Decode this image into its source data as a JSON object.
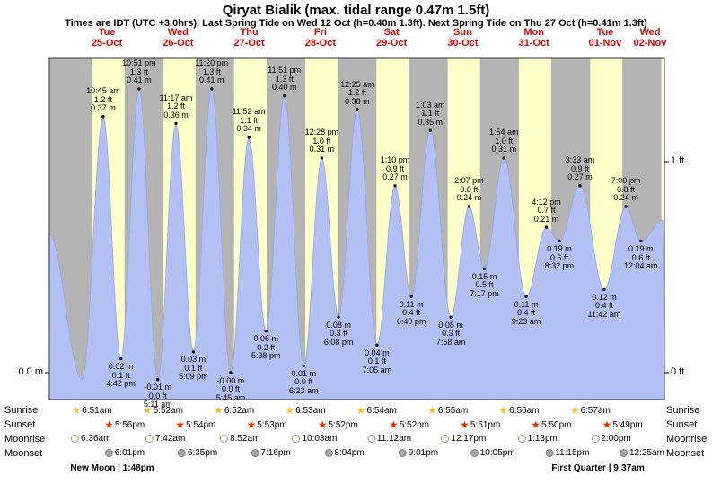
{
  "header": {
    "title": "Qiryat Bialik (max. tidal range 0.47m 1.5ft)",
    "subtitle": "Times are IDT (UTC +3.0hrs). Last Spring Tide on Wed 12 Oct (h=0.40m 1.3ft). Next Spring Tide on Thu 27 Oct (h=0.41m 1.3ft)"
  },
  "colors": {
    "band_day": "#ffffc9",
    "band_night": "#b4b4b4",
    "tide_fill": "#b2c0f4",
    "tide_stroke": "#93a7e8",
    "accent_red": "#e00000",
    "sunrise_star": "#f1c232",
    "sunset_star": "#e03300",
    "moonrise_fill": "#fffef0",
    "moonrise_border": "#999999",
    "moonset_fill": "#a6a6a6",
    "moonset_border": "#808080",
    "dot": "#111111",
    "border": "#333333"
  },
  "chart_data": {
    "type": "area",
    "title": "Qiryat Bialik (max. tidal range 0.47m 1.5ft)",
    "xlabel": "",
    "ylabel": "tide height",
    "ylim_ft": [
      -0.13,
      1.49
    ],
    "days": [
      {
        "dow": "Tue",
        "date": "25-Oct"
      },
      {
        "dow": "Wed",
        "date": "26-Oct"
      },
      {
        "dow": "Thu",
        "date": "27-Oct"
      },
      {
        "dow": "Fri",
        "date": "28-Oct"
      },
      {
        "dow": "Sat",
        "date": "29-Oct"
      },
      {
        "dow": "Sun",
        "date": "30-Oct"
      },
      {
        "dow": "Mon",
        "date": "31-Oct"
      },
      {
        "dow": "Tue",
        "date": "01-Nov"
      },
      {
        "dow": "Wed",
        "date": "02-Nov"
      }
    ],
    "y_axis": {
      "left_label": "0.0 m",
      "right_top_label": "1 ft",
      "right_bottom_label": "0 ft",
      "right_ticks_ft": [
        1,
        0
      ],
      "left_tick_m": 0.0
    },
    "extremes": [
      {
        "kind": "high",
        "day": 0,
        "time": "10:45 am",
        "ft": "1.2 ft",
        "m": "0.37 m",
        "h_m": 0.37
      },
      {
        "kind": "low",
        "day": 0,
        "time": "4:42 pm",
        "ft": "0.1 ft",
        "m": "0.02 m",
        "h_m": 0.02
      },
      {
        "kind": "high",
        "day": 0,
        "time": "10:51 pm",
        "ft": "1.3 ft",
        "m": "0.41 m",
        "h_m": 0.41
      },
      {
        "kind": "low",
        "day": 1,
        "time": "5:11 am",
        "ft": "0.0 ft",
        "m": "-0.01 m",
        "h_m": -0.01
      },
      {
        "kind": "high",
        "day": 1,
        "time": "11:17 am",
        "ft": "1.2 ft",
        "m": "0.36 m",
        "h_m": 0.36
      },
      {
        "kind": "low",
        "day": 1,
        "time": "5:09 pm",
        "ft": "0.1 ft",
        "m": "0.03 m",
        "h_m": 0.03
      },
      {
        "kind": "high",
        "day": 1,
        "time": "11:20 pm",
        "ft": "1.3 ft",
        "m": "0.41 m",
        "h_m": 0.41
      },
      {
        "kind": "low",
        "day": 2,
        "time": "5:45 am",
        "ft": "0.0 ft",
        "m": "-0.00 m",
        "h_m": 0.0
      },
      {
        "kind": "high",
        "day": 2,
        "time": "11:52 am",
        "ft": "1.1 ft",
        "m": "0.34 m",
        "h_m": 0.34
      },
      {
        "kind": "low",
        "day": 2,
        "time": "5:38 pm",
        "ft": "0.2 ft",
        "m": "0.06 m",
        "h_m": 0.06
      },
      {
        "kind": "high",
        "day": 2,
        "time": "11:51 pm",
        "ft": "1.3 ft",
        "m": "0.40 m",
        "h_m": 0.4
      },
      {
        "kind": "low",
        "day": 3,
        "time": "6:23 am",
        "ft": "0.0 ft",
        "m": "0.01 m",
        "h_m": 0.01
      },
      {
        "kind": "high",
        "day": 3,
        "time": "12:28 pm",
        "ft": "1.0 ft",
        "m": "0.31 m",
        "h_m": 0.31
      },
      {
        "kind": "low",
        "day": 3,
        "time": "6:08 pm",
        "ft": "0.3 ft",
        "m": "0.08 m",
        "h_m": 0.08
      },
      {
        "kind": "high",
        "day": 4,
        "time": "12:25 am",
        "ft": "1.2 ft",
        "m": "0.38 m",
        "h_m": 0.38
      },
      {
        "kind": "low",
        "day": 4,
        "time": "7:05 am",
        "ft": "0.1 ft",
        "m": "0.04 m",
        "h_m": 0.04
      },
      {
        "kind": "high",
        "day": 4,
        "time": "1:10 pm",
        "ft": "0.9 ft",
        "m": "0.27 m",
        "h_m": 0.27
      },
      {
        "kind": "low",
        "day": 4,
        "time": "6:40 pm",
        "ft": "0.4 ft",
        "m": "0.11 m",
        "h_m": 0.11
      },
      {
        "kind": "high",
        "day": 5,
        "time": "1:03 am",
        "ft": "1.1 ft",
        "m": "0.35 m",
        "h_m": 0.35
      },
      {
        "kind": "low",
        "day": 5,
        "time": "7:58 am",
        "ft": "0.3 ft",
        "m": "0.08 m",
        "h_m": 0.08
      },
      {
        "kind": "high",
        "day": 5,
        "time": "2:07 pm",
        "ft": "0.8 ft",
        "m": "0.24 m",
        "h_m": 0.24
      },
      {
        "kind": "low",
        "day": 5,
        "time": "7:17 pm",
        "ft": "0.5 ft",
        "m": "0.15 m",
        "h_m": 0.15
      },
      {
        "kind": "high",
        "day": 6,
        "time": "1:54 am",
        "ft": "1.0 ft",
        "m": "0.31 m",
        "h_m": 0.31
      },
      {
        "kind": "low",
        "day": 6,
        "time": "9:23 am",
        "ft": "0.4 ft",
        "m": "0.11 m",
        "h_m": 0.11
      },
      {
        "kind": "high",
        "day": 6,
        "time": "4:12 pm",
        "ft": "0.7 ft",
        "m": "0.21 m",
        "h_m": 0.21
      },
      {
        "kind": "low",
        "day": 6,
        "time": "8:32 pm",
        "ft": "0.6 ft",
        "m": "0.19 m",
        "h_m": 0.19
      },
      {
        "kind": "high",
        "day": 7,
        "time": "3:33 am",
        "ft": "0.9 ft",
        "m": "0.27 m",
        "h_m": 0.27
      },
      {
        "kind": "low",
        "day": 7,
        "time": "11:42 am",
        "ft": "0.4 ft",
        "m": "0.12 m",
        "h_m": 0.12
      },
      {
        "kind": "high",
        "day": 7,
        "time": "7:00 pm",
        "ft": "0.8 ft",
        "m": "0.24 m",
        "h_m": 0.24
      },
      {
        "kind": "low",
        "day": 8,
        "time": "12:04 am",
        "ft": "0.6 ft",
        "m": "0.19 m",
        "h_m": 0.19
      }
    ],
    "curve_anchors": [
      {
        "kind": "edge",
        "day": -1,
        "time": "4:30 pm",
        "h_m": 0.2
      },
      {
        "kind": "low",
        "day": 0,
        "time": "3:40 am",
        "h_m": -0.01
      },
      {
        "kind": "edge",
        "day": 8,
        "time": "7:30 am",
        "h_m": 0.22
      }
    ]
  },
  "almanac": {
    "rows": [
      {
        "label": "Sunrise",
        "icon": "sunrise-star-icon",
        "events": [
          {
            "day": 0,
            "time": "6:51am"
          },
          {
            "day": 1,
            "time": "6:52am"
          },
          {
            "day": 2,
            "time": "6:52am"
          },
          {
            "day": 3,
            "time": "6:53am"
          },
          {
            "day": 4,
            "time": "6:54am"
          },
          {
            "day": 5,
            "time": "6:55am"
          },
          {
            "day": 6,
            "time": "6:56am"
          },
          {
            "day": 7,
            "time": "6:57am"
          }
        ]
      },
      {
        "label": "Sunset",
        "icon": "sunset-star-icon",
        "events": [
          {
            "day": 0,
            "time": "5:56pm"
          },
          {
            "day": 1,
            "time": "5:54pm"
          },
          {
            "day": 2,
            "time": "5:53pm"
          },
          {
            "day": 3,
            "time": "5:52pm"
          },
          {
            "day": 4,
            "time": "5:52pm"
          },
          {
            "day": 5,
            "time": "5:51pm"
          },
          {
            "day": 6,
            "time": "5:50pm"
          },
          {
            "day": 7,
            "time": "5:49pm"
          }
        ]
      },
      {
        "label": "Moonrise",
        "icon": "moonrise-icon",
        "events": [
          {
            "day": 0,
            "time": "6:36am"
          },
          {
            "day": 1,
            "time": "7:42am"
          },
          {
            "day": 2,
            "time": "8:52am"
          },
          {
            "day": 3,
            "time": "10:03am"
          },
          {
            "day": 4,
            "time": "11:12am"
          },
          {
            "day": 5,
            "time": "12:17pm"
          },
          {
            "day": 6,
            "time": "1:13pm"
          },
          {
            "day": 7,
            "time": "2:00pm"
          }
        ]
      },
      {
        "label": "Moonset",
        "icon": "moonset-icon",
        "events": [
          {
            "day": 0,
            "time": "6:01pm"
          },
          {
            "day": 1,
            "time": "6:35pm"
          },
          {
            "day": 2,
            "time": "7:16pm"
          },
          {
            "day": 3,
            "time": "8:04pm"
          },
          {
            "day": 4,
            "time": "9:01pm"
          },
          {
            "day": 5,
            "time": "10:05pm"
          },
          {
            "day": 6,
            "time": "11:15pm"
          },
          {
            "day": 8,
            "time": "12:25am"
          }
        ]
      }
    ],
    "phases": [
      {
        "label": "New Moon | 1:48pm",
        "day": 0,
        "time": "1:48pm"
      },
      {
        "label": "First Quarter | 9:37am",
        "day": 7,
        "time": "9:37am"
      }
    ]
  }
}
